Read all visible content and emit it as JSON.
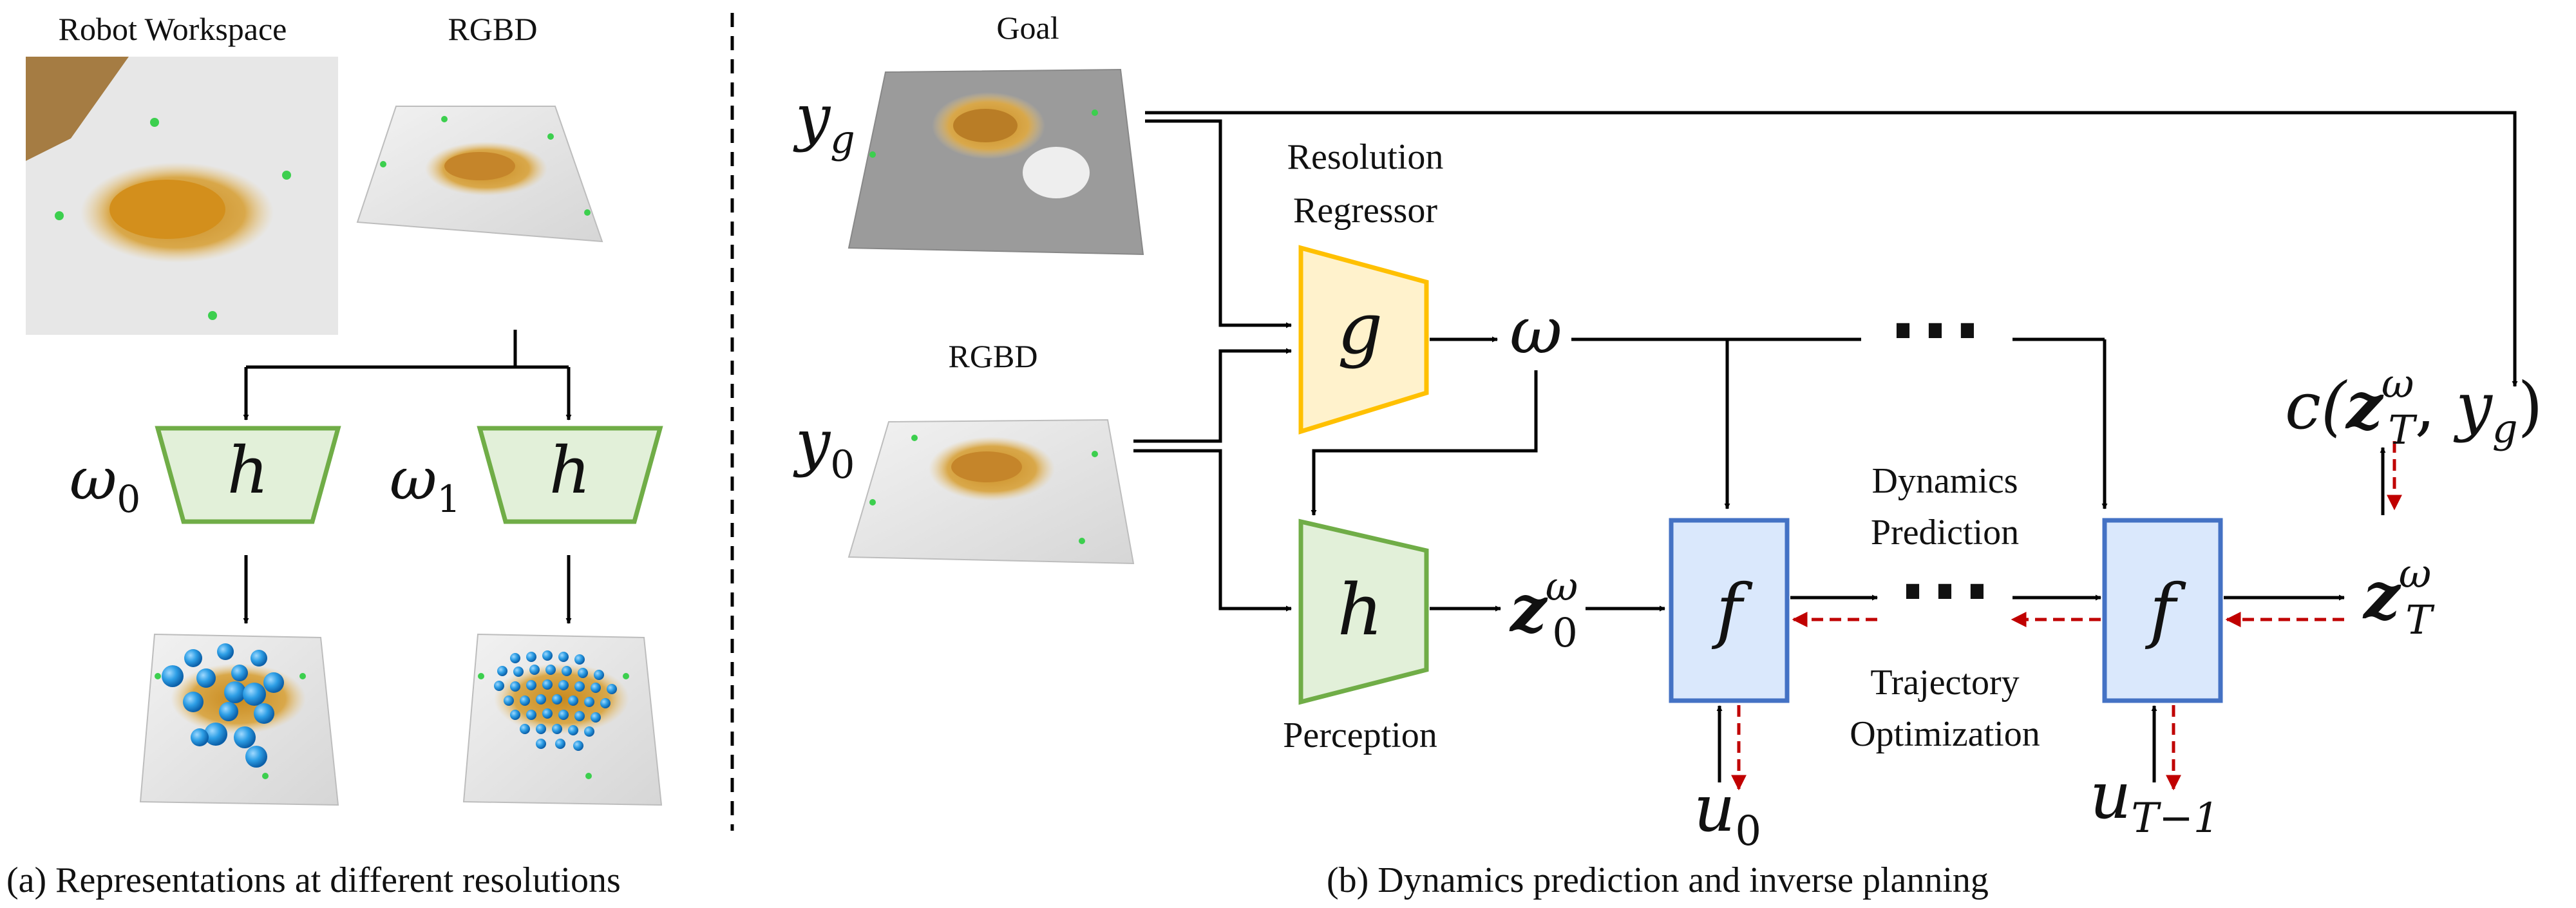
{
  "panel_a": {
    "label_workspace": "Robot Workspace",
    "label_rgbd": "RGBD",
    "omega0": "ω",
    "omega0_sub": "0",
    "omega1": "ω",
    "omega1_sub": "1",
    "encoder_left": "h",
    "encoder_right": "h",
    "caption": "(a) Representations at different resolutions"
  },
  "panel_b": {
    "label_goal": "Goal",
    "label_rgbd": "RGBD",
    "y_g": "y",
    "y_g_sub": "g",
    "y_0": "y",
    "y_0_sub": "0",
    "regressor_title_line1": "Resolution",
    "regressor_title_line2": "Regressor",
    "regressor_symbol": "g",
    "omega": "ω",
    "perception_symbol": "h",
    "perception_label": "Perception",
    "z0": "z",
    "z0_sup": "ω",
    "z0_sub": "0",
    "dyn_symbol_1": "f",
    "dyn_symbol_2": "f",
    "dots": "⋯",
    "dyn_pred_line1": "Dynamics",
    "dyn_pred_line2": "Prediction",
    "traj_opt_line1": "Trajectory",
    "traj_opt_line2": "Optimization",
    "u0": "u",
    "u0_sub": "0",
    "uT": "u",
    "uT_sub": "T−1",
    "zT": "z",
    "zT_sup": "ω",
    "zT_sub": "T",
    "cost_prefix": "c(",
    "cost_z": "z",
    "cost_z_sup": "ω",
    "cost_z_sub": "T",
    "cost_mid": ", ",
    "cost_y": "y",
    "cost_y_sub": "g",
    "cost_suffix": ")",
    "caption": "(b) Dynamics prediction and inverse planning"
  },
  "colors": {
    "encoder_fill": "#e2f0d9",
    "encoder_stroke": "#70ad47",
    "regressor_fill": "#fff2cc",
    "regressor_stroke": "#ffc000",
    "dynamics_fill": "#dae8fc",
    "dynamics_stroke": "#4472c4",
    "grad_arrow": "#c00000",
    "particle": "#2e9fe6",
    "marker": "#3ccf4e",
    "grain": "#d4a23a"
  }
}
